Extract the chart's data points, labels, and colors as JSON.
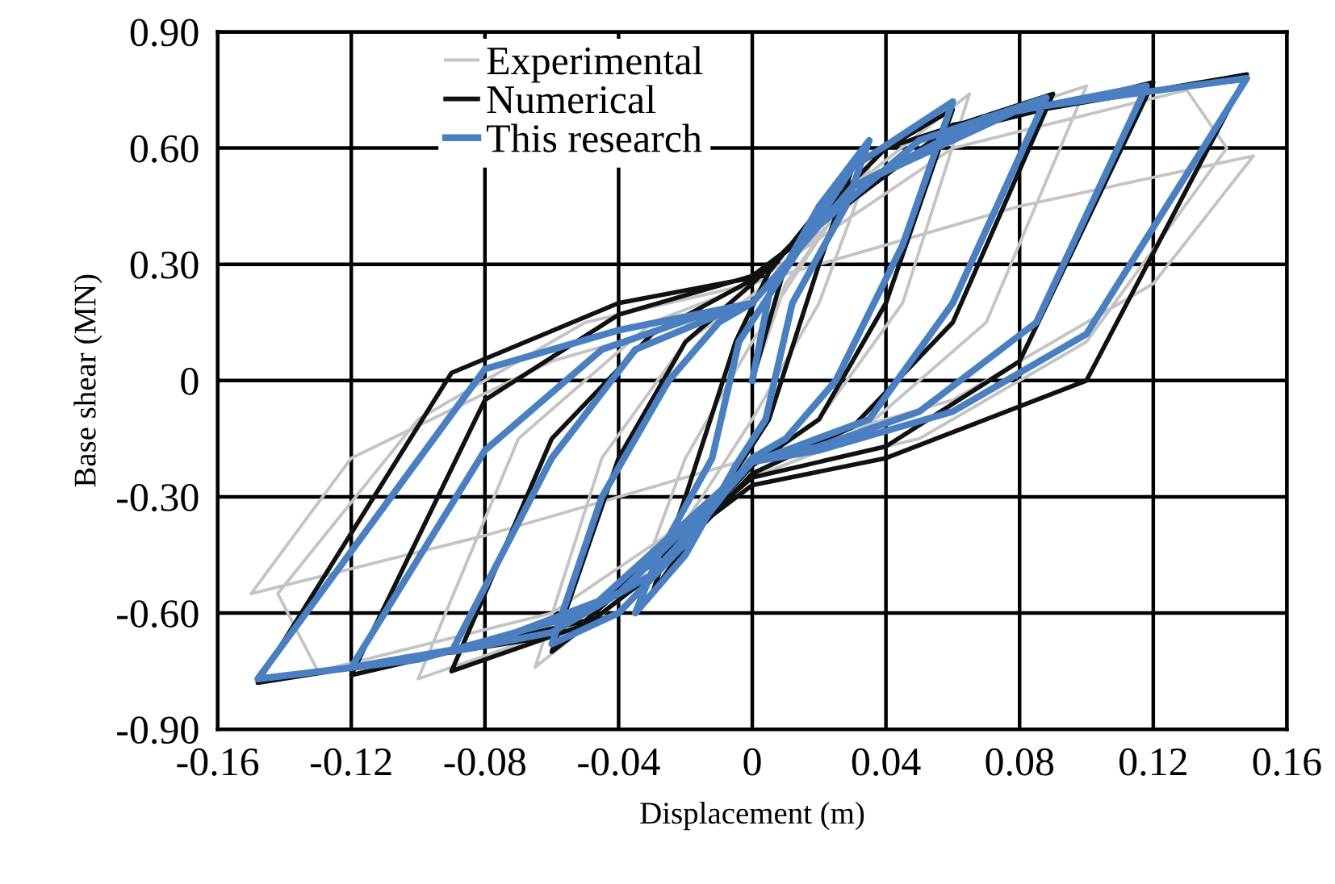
{
  "chart_data": {
    "type": "line",
    "xlabel": "Displacement (m)",
    "ylabel": "Base shear (MN)",
    "xlim": [
      -0.16,
      0.16
    ],
    "ylim": [
      -0.9,
      0.9
    ],
    "xticks": [
      -0.16,
      -0.12,
      -0.08,
      -0.04,
      0,
      0.04,
      0.08,
      0.12,
      0.16
    ],
    "yticks": [
      {
        "value": 0.9,
        "label": "0.90"
      },
      {
        "value": 0.6,
        "label": "0.60"
      },
      {
        "value": 0.3,
        "label": "0.30"
      },
      0,
      {
        "value": -0.3,
        "label": "-0.30"
      },
      {
        "value": -0.6,
        "label": "-0.60"
      },
      {
        "value": -0.9,
        "label": "-0.90"
      }
    ],
    "grid": true,
    "legend": "top left",
    "line_style": "solid",
    "series": [
      {
        "name": "Experimental",
        "color": "#c4c4c4",
        "x": [
          0,
          0.01,
          0.035,
          0.02,
          0,
          -0.015,
          -0.035,
          -0.02,
          0,
          0.03,
          0.065,
          0.045,
          0.02,
          0,
          -0.03,
          -0.065,
          -0.045,
          -0.02,
          0,
          0.05,
          0.1,
          0.07,
          0.03,
          0,
          -0.05,
          -0.1,
          -0.07,
          -0.03,
          0,
          0.06,
          0.13,
          0.142,
          0.1,
          0.05,
          0,
          -0.06,
          -0.13,
          -0.142,
          -0.1,
          -0.05,
          0,
          0.08,
          0.15,
          0.12,
          0.06,
          0,
          -0.08,
          -0.15,
          -0.12,
          -0.06,
          0
        ],
        "values": [
          0,
          0.25,
          0.55,
          0.2,
          -0.1,
          -0.3,
          -0.55,
          -0.2,
          0.1,
          0.5,
          0.74,
          0.2,
          -0.1,
          -0.22,
          -0.5,
          -0.74,
          -0.2,
          0.1,
          0.22,
          0.62,
          0.76,
          0.15,
          -0.15,
          -0.25,
          -0.62,
          -0.77,
          -0.15,
          0.15,
          0.25,
          0.6,
          0.75,
          0.6,
          0.1,
          -0.15,
          -0.25,
          -0.6,
          -0.75,
          -0.55,
          -0.1,
          0.15,
          0.25,
          0.45,
          0.58,
          0.25,
          -0.05,
          -0.2,
          -0.4,
          -0.55,
          -0.2,
          0.05,
          0.2
        ]
      },
      {
        "name": "Numerical",
        "color": "#111111",
        "x": [
          0,
          0.01,
          0.03,
          0.02,
          0.005,
          -0.01,
          -0.03,
          -0.02,
          -0.005,
          0.005,
          0.03,
          0.06,
          0.04,
          0.02,
          0,
          -0.03,
          -0.06,
          -0.04,
          -0.02,
          0,
          0.04,
          0.09,
          0.06,
          0.03,
          0,
          -0.04,
          -0.09,
          -0.06,
          -0.03,
          0,
          0.05,
          0.12,
          0.08,
          0.04,
          0,
          -0.05,
          -0.12,
          -0.08,
          -0.04,
          0,
          0.06,
          0.148,
          0.1,
          0.04,
          0,
          -0.06,
          -0.148,
          -0.09,
          -0.04,
          0.003
        ],
        "values": [
          0,
          0.3,
          0.55,
          0.3,
          -0.1,
          -0.3,
          -0.55,
          -0.3,
          0.1,
          0.28,
          0.55,
          0.7,
          0.2,
          -0.1,
          -0.22,
          -0.5,
          -0.7,
          -0.2,
          0.1,
          0.25,
          0.6,
          0.74,
          0.15,
          -0.12,
          -0.24,
          -0.6,
          -0.75,
          -0.15,
          0.12,
          0.26,
          0.62,
          0.77,
          0.05,
          -0.17,
          -0.25,
          -0.62,
          -0.76,
          -0.05,
          0.17,
          0.27,
          0.66,
          0.79,
          0,
          -0.2,
          -0.27,
          -0.66,
          -0.78,
          0.02,
          0.2,
          0.27
        ]
      },
      {
        "name": "This research",
        "color": "#4a7fc1",
        "x": [
          0,
          0.005,
          0.02,
          0.035,
          0.028,
          0.012,
          0.004,
          -0.005,
          -0.02,
          -0.035,
          -0.028,
          -0.012,
          -0.004,
          0.005,
          0.03,
          0.06,
          0.045,
          0.025,
          0.01,
          0,
          -0.02,
          -0.04,
          -0.06,
          -0.045,
          -0.025,
          -0.01,
          0,
          0.02,
          0.05,
          0.088,
          0.06,
          0.035,
          0.01,
          0,
          -0.03,
          -0.06,
          -0.09,
          -0.06,
          -0.035,
          -0.01,
          0,
          0.03,
          0.07,
          0.118,
          0.085,
          0.05,
          0.02,
          0,
          -0.04,
          -0.08,
          -0.12,
          -0.08,
          -0.045,
          -0.015,
          0,
          0.03,
          0.08,
          0.148,
          0.1,
          0.06,
          0.02,
          0,
          -0.05,
          -0.1,
          -0.148,
          -0.08,
          -0.04,
          0
        ],
        "values": [
          0,
          0.22,
          0.45,
          0.62,
          0.45,
          0.2,
          -0.1,
          -0.22,
          -0.45,
          -0.6,
          -0.45,
          -0.2,
          0.1,
          0.22,
          0.55,
          0.72,
          0.35,
          0,
          -0.15,
          -0.2,
          -0.42,
          -0.6,
          -0.68,
          -0.3,
          0,
          0.15,
          0.2,
          0.4,
          0.62,
          0.73,
          0.2,
          -0.1,
          -0.18,
          -0.21,
          -0.5,
          -0.65,
          -0.7,
          -0.2,
          0.08,
          0.17,
          0.2,
          0.5,
          0.68,
          0.76,
          0.15,
          -0.08,
          -0.17,
          -0.21,
          -0.55,
          -0.68,
          -0.74,
          -0.18,
          0.08,
          0.17,
          0.2,
          0.5,
          0.7,
          0.78,
          0.12,
          -0.08,
          -0.18,
          -0.21,
          -0.6,
          -0.72,
          -0.77,
          0.03,
          0.13,
          0.2
        ]
      }
    ]
  }
}
